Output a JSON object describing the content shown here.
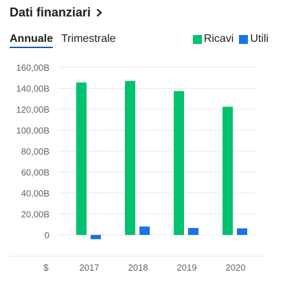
{
  "header": {
    "title": "Dati finanziari"
  },
  "tabs": [
    {
      "label": "Annuale",
      "active": true
    },
    {
      "label": "Trimestrale",
      "active": false
    }
  ],
  "colors": {
    "revenue": "#00c26f",
    "profit": "#1a73e8",
    "grid": "#e6e6e6",
    "text": "#5f6368"
  },
  "icons": {
    "header_chevron": "chevron-right-icon"
  },
  "chart_data": {
    "type": "bar",
    "categories": [
      "2017",
      "2018",
      "2019",
      "2020"
    ],
    "series": [
      {
        "name": "Ricavi",
        "values": [
          145.5,
          146.9,
          137.3,
          122.3
        ]
      },
      {
        "name": "Utili",
        "values": [
          -4.1,
          8.0,
          6.6,
          6.3
        ]
      }
    ],
    "y_ticks": [
      0,
      20,
      40,
      60,
      80,
      100,
      120,
      140,
      160
    ],
    "y_tick_labels": [
      "0",
      "20,00B",
      "40,00B",
      "60,00B",
      "80,00B",
      "100,00B",
      "120,00B",
      "140,00B",
      "160,00B"
    ],
    "ylim": [
      0,
      160
    ],
    "x_axis_unit_label": "$",
    "legend_position": "top-right",
    "grid": true
  }
}
